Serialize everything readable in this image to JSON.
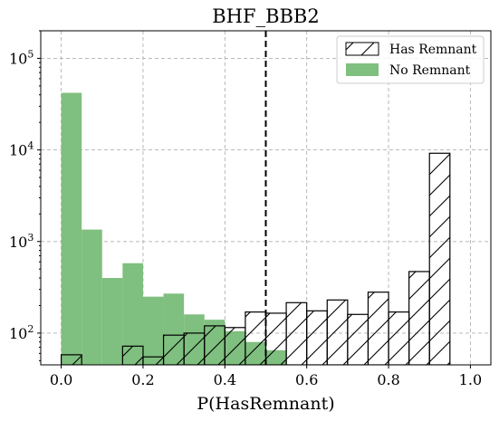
{
  "chart_data": {
    "type": "bar",
    "title": "BHF_BBB2",
    "xlabel": "P(HasRemnant)",
    "ylabel": "",
    "xlim": [
      -0.05,
      1.05
    ],
    "ylim": [
      45,
      200000
    ],
    "yscale": "log",
    "x_ticks": [
      0.0,
      0.2,
      0.4,
      0.6,
      0.8,
      1.0
    ],
    "x_tick_labels": [
      "0.0",
      "0.2",
      "0.4",
      "0.6",
      "0.8",
      "1.0"
    ],
    "y_ticks": [
      100,
      1000,
      10000,
      100000
    ],
    "y_tick_labels": [
      {
        "base": "10",
        "exp": "2"
      },
      {
        "base": "10",
        "exp": "3"
      },
      {
        "base": "10",
        "exp": "4"
      },
      {
        "base": "10",
        "exp": "5"
      }
    ],
    "grid": true,
    "legend_position": "top-right",
    "threshold_line": 0.5,
    "bin_edges": [
      0.0,
      0.05,
      0.1,
      0.15,
      0.2,
      0.25,
      0.3,
      0.35,
      0.4,
      0.45,
      0.5,
      0.55,
      0.6,
      0.65,
      0.7,
      0.75,
      0.8,
      0.85,
      0.9,
      0.95,
      1.0
    ],
    "series": [
      {
        "name": "No Remnant",
        "style": "filled",
        "color": "#7fbf7f",
        "values": [
          42000,
          1350,
          400,
          580,
          250,
          270,
          160,
          140,
          105,
          80,
          65
        ]
      },
      {
        "name": "Has Remnant",
        "style": "hatched",
        "color": "#000000",
        "values": [
          58,
          null,
          null,
          72,
          55,
          95,
          100,
          120,
          115,
          170,
          165,
          215,
          175,
          230,
          160,
          280,
          170,
          470,
          9200
        ]
      }
    ]
  }
}
